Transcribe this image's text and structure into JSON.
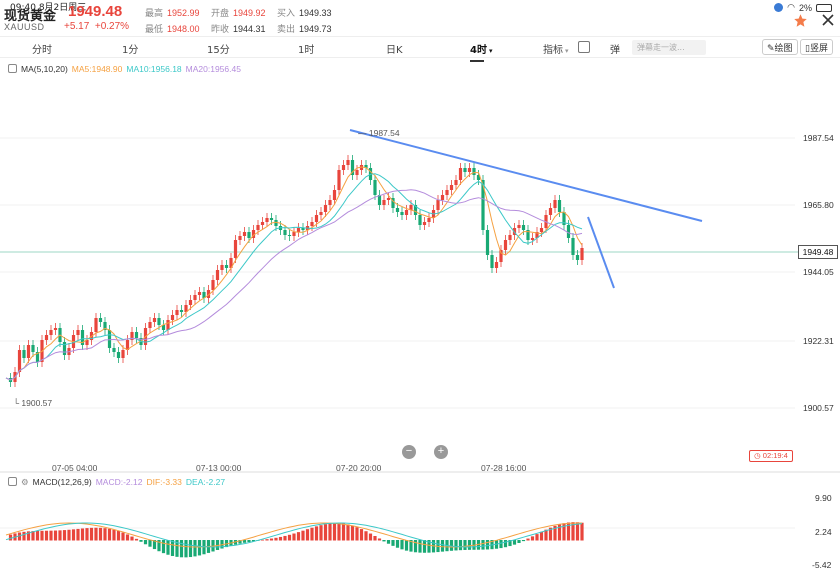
{
  "status_bar": {
    "time": "09:40",
    "date": "8月2日周三",
    "battery": "2%"
  },
  "instrument": {
    "name": "现货黄金",
    "symbol": "XAUUSD",
    "price": "1949.48",
    "change": "+5.17",
    "change_pct": "+0.27%"
  },
  "stats": {
    "high_label": "最高",
    "high": "1952.99",
    "low_label": "最低",
    "low": "1948.00",
    "open_label": "开盘",
    "open": "1949.92",
    "prev_label": "昨收",
    "prev": "1944.31",
    "bid_label": "买入",
    "bid": "1949.33",
    "ask_label": "卖出",
    "ask": "1949.73"
  },
  "tabs": [
    {
      "label": "分时"
    },
    {
      "label": "1分"
    },
    {
      "label": "15分"
    },
    {
      "label": "1时"
    },
    {
      "label": "日K"
    },
    {
      "label": "4时"
    }
  ],
  "toolbar": {
    "indicator_label": "指标",
    "danmaku_label": "弹",
    "danmaku_placeholder": "弹幕走一波...",
    "draw_label": "绘图",
    "landscape_label": "竖屏"
  },
  "ma_legend": {
    "title": "MA(5,10,20)",
    "ma5": "MA5:1948.90",
    "ma10": "MA10:1956.18",
    "ma20": "MA20:1956.45"
  },
  "macd_legend": {
    "title": "MACD(12,26,9)",
    "macd": "MACD:-2.12",
    "dif": "DIF:-3.33",
    "dea": "DEA:-2.27"
  },
  "price_axis": [
    "1987.54",
    "1965.80",
    "1944.05",
    "1922.31",
    "1900.57"
  ],
  "current_price_tag": "1949.48",
  "macd_axis": [
    "9.90",
    "2.24",
    "-5.42"
  ],
  "time_axis": [
    "07-05 04:00",
    "07-13 00:00",
    "07-20 20:00",
    "07-28 16:00"
  ],
  "high_marker": "1987.54",
  "low_marker": "1900.57",
  "countdown": "02:19:4",
  "zoom": {
    "minus": "−",
    "plus": "+"
  },
  "colors": {
    "up": "#e8453c",
    "down": "#19a974",
    "ma5": "#f5a142",
    "ma10": "#3cc8c8",
    "ma20": "#b48cdc",
    "trend": "#5a8cf0"
  }
}
